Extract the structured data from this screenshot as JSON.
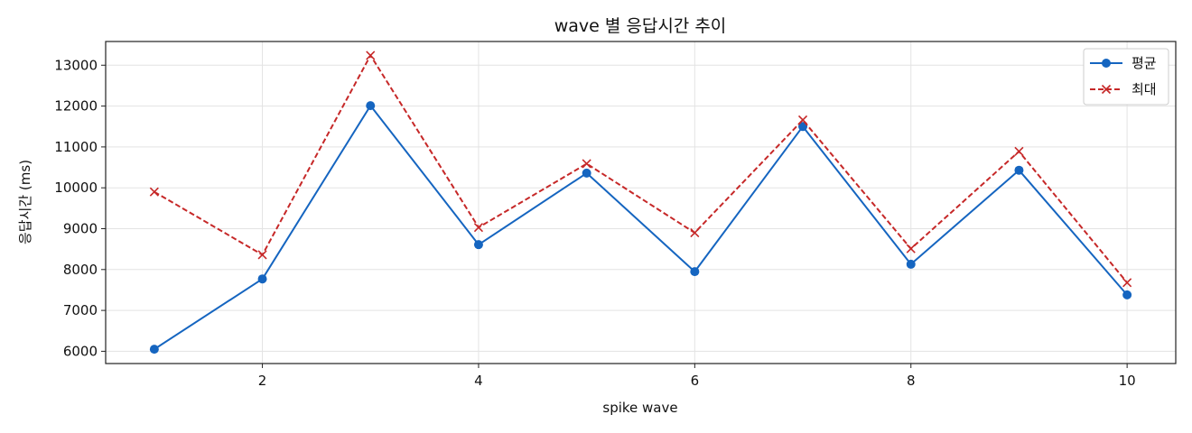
{
  "chart_data": {
    "type": "line",
    "title": "wave 별 응답시간 추이",
    "xlabel": "spike wave",
    "ylabel": "응답시간 (ms)",
    "x": [
      1,
      2,
      3,
      4,
      5,
      6,
      7,
      8,
      9,
      10
    ],
    "xlim": [
      0.55,
      10.45
    ],
    "ylim": [
      5700,
      13580
    ],
    "xticks": [
      2,
      4,
      6,
      8,
      10
    ],
    "yticks": [
      6000,
      7000,
      8000,
      9000,
      10000,
      11000,
      12000,
      13000
    ],
    "grid": true,
    "legend_position": "top-right",
    "series": [
      {
        "name": "평균",
        "color": "#1565c0",
        "line_style": "solid",
        "marker": "circle",
        "values": [
          6050,
          7770,
          12010,
          8610,
          10360,
          7950,
          11500,
          8130,
          10430,
          7380
        ]
      },
      {
        "name": "최대",
        "color": "#c62828",
        "line_style": "dashed",
        "marker": "x",
        "values": [
          9900,
          8360,
          13240,
          9030,
          10590,
          8900,
          11660,
          8510,
          10890,
          7680
        ]
      }
    ]
  }
}
